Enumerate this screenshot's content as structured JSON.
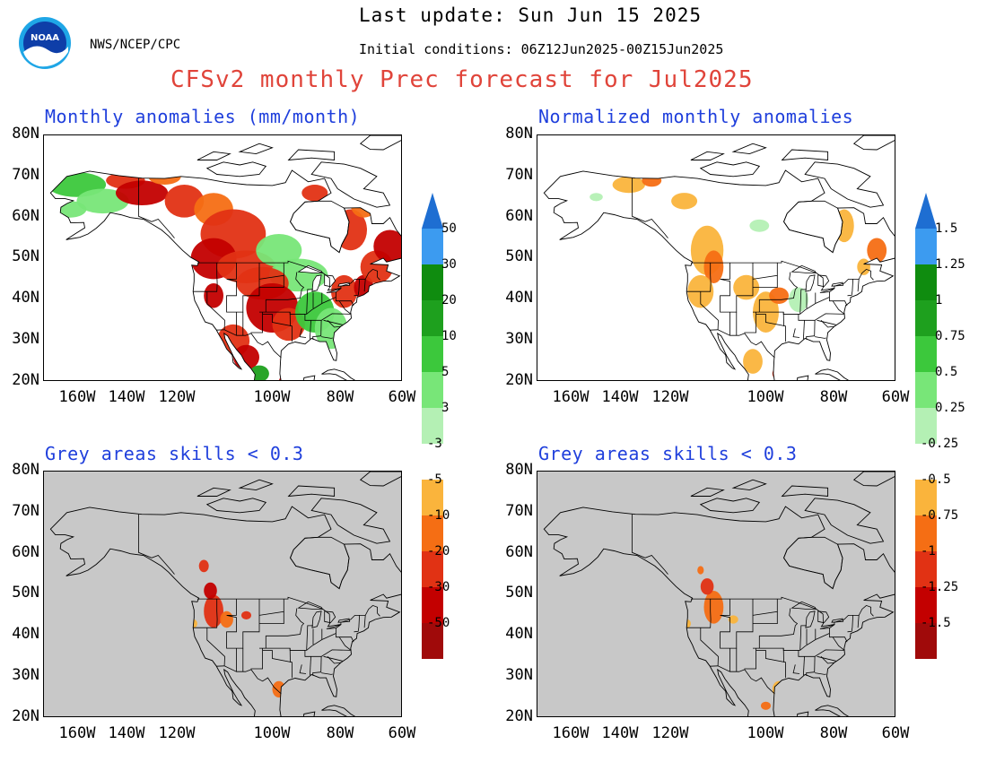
{
  "header": {
    "last_update": "Last update: Sun Jun 15 2025",
    "org": "NWS/NCEP/CPC",
    "initial_conditions": "Initial conditions: 06Z12Jun2025-00Z15Jun2025",
    "title": "CFSv2 monthly Prec forecast for Jul2025",
    "logo_text": "NOAA"
  },
  "axes": {
    "lat_labels": [
      "80N",
      "70N",
      "60N",
      "50N",
      "40N",
      "30N",
      "20N"
    ],
    "lon_labels": [
      "160W",
      "140W",
      "120W",
      "100W",
      "80W",
      "60W"
    ]
  },
  "panels": [
    {
      "title": "Monthly anomalies (mm/month)",
      "background": "white"
    },
    {
      "title": "Normalized monthly anomalies",
      "background": "white"
    },
    {
      "title": "Grey areas skills < 0.3",
      "background": "grey"
    },
    {
      "title": "Grey areas skills < 0.3",
      "background": "grey"
    }
  ],
  "colorbar_left": {
    "labels": [
      "50",
      "30",
      "20",
      "10",
      "5",
      "3",
      "-3",
      "-5",
      "-10",
      "-20",
      "-30",
      "-50"
    ]
  },
  "colorbar_right": {
    "labels": [
      "1.5",
      "1.25",
      "1",
      "0.75",
      "0.5",
      "0.25",
      "-0.25",
      "-0.5",
      "-0.75",
      "-1",
      "-1.25",
      "-1.5"
    ]
  },
  "colors": {
    "title_red": "#e0443a",
    "panel_title_blue": "#1f3fdc",
    "skill_mask_grey": "#c8c8c8",
    "positive": [
      "#b4f0b4",
      "#78e678",
      "#3cc83c",
      "#1ea01e",
      "#0f8c0f",
      "#3c9bf0",
      "#1e6ed2"
    ],
    "negative": [
      "#fab43c",
      "#f56e14",
      "#e13214",
      "#c30000",
      "#a00a0a",
      "#a07868",
      "#6e4632"
    ],
    "negative_right_lowest": [
      "#e68c8c",
      "#6e4632"
    ]
  }
}
